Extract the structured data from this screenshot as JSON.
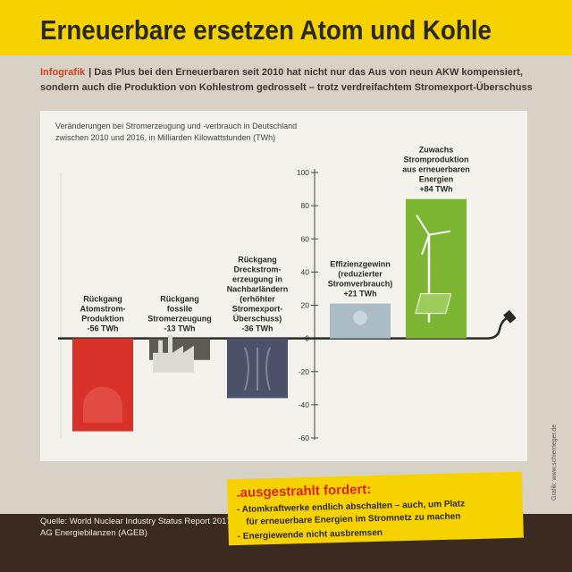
{
  "header": {
    "title": "Erneuerbare ersetzen Atom und Kohle"
  },
  "intro": {
    "tag": "Infografik",
    "line1": "| Das Plus bei den Erneuerbaren seit 2010 hat nicht nur das Aus von neun AKW kompensiert,",
    "line2": "sondern auch die Produktion von Kohlestrom gedrosselt – trotz verdreifachtem Stromexport-Überschuss"
  },
  "chart_data": {
    "type": "bar",
    "subtitle": [
      "Veränderungen bei Stromerzeugung und -verbrauch in Deutschland",
      "zwischen 2010 und 2016, in Milliarden Kilowattstunden (TWh)"
    ],
    "categories": [
      [
        "Rückgang",
        "Atomstrom-",
        "Produktion"
      ],
      [
        "Rückgang",
        "fossile",
        "Stromerzeugung"
      ],
      [
        "Rückgang",
        "Dreckstrom-",
        "erzeugung in",
        "Nachbarländern",
        "(erhöhter",
        "Stromexport-",
        "Überschuss)"
      ],
      [
        "Effizienzgewinn",
        "(reduzierter",
        "Stromverbrauch)"
      ],
      [
        "Zuwachs",
        "Stromproduktion",
        "aus erneuerbaren",
        "Energien"
      ]
    ],
    "values": [
      -56,
      -13,
      -36,
      21,
      84
    ],
    "value_labels": [
      "-56 TWh",
      "-13 TWh",
      "-36 TWh",
      "+21 TWh",
      "+84 TWh"
    ],
    "colors": [
      "#d8312a",
      "#5b5a57",
      "#4b5168",
      "#aabcc6",
      "#7cb531"
    ],
    "ylim": [
      -60,
      100
    ],
    "yticks": [
      100,
      80,
      60,
      40,
      20,
      0,
      -20,
      -40,
      -60
    ],
    "grid": false
  },
  "callout": {
    "heading": ".ausgestrahlt fordert:",
    "bullets": [
      "- Atomkraftwerke endlich abschalten – auch, um Platz",
      "für erneuerbare Energien im Stromnetz zu machen",
      "- Energiewende nicht ausbremsen"
    ]
  },
  "footer": {
    "sources": [
      "Quelle: World Nuclear Industry Status Report 2017;",
      "AG Energiebilanzen (AGEB)"
    ],
    "credit": "Grafik: www.schierrieger.de"
  }
}
